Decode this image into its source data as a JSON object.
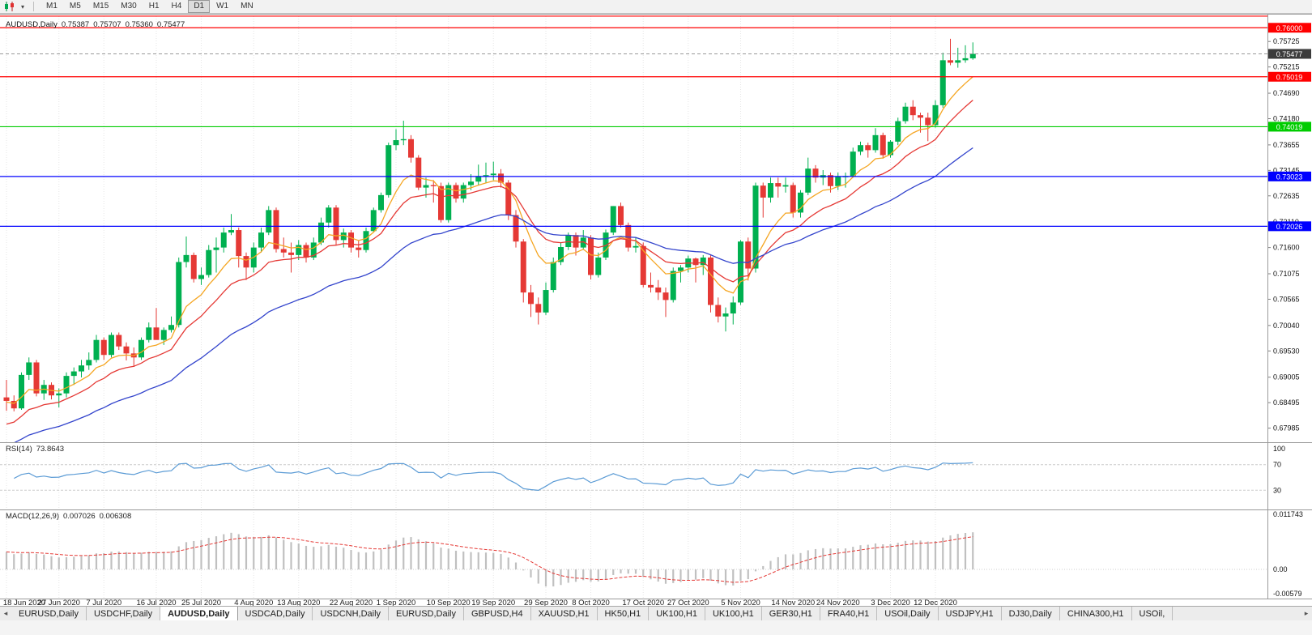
{
  "toolbar": {
    "timeframes": [
      {
        "label": "M1",
        "active": false
      },
      {
        "label": "M5",
        "active": false
      },
      {
        "label": "M15",
        "active": false
      },
      {
        "label": "M30",
        "active": false
      },
      {
        "label": "H1",
        "active": false
      },
      {
        "label": "H4",
        "active": false
      },
      {
        "label": "D1",
        "active": true
      },
      {
        "label": "W1",
        "active": false
      },
      {
        "label": "MN",
        "active": false
      }
    ]
  },
  "chart": {
    "symbol_line": {
      "symbol": "AUDUSD,Daily",
      "open": "0.75387",
      "high": "0.75707",
      "low": "0.75360",
      "close": "0.75477"
    },
    "price_axis_ticks": [
      "0.75725",
      "0.75215",
      "0.74690",
      "0.74180",
      "0.73655",
      "0.73145",
      "0.72635",
      "0.72110",
      "0.71600",
      "0.71075",
      "0.70565",
      "0.70040",
      "0.69530",
      "0.69005",
      "0.68495",
      "0.67985"
    ],
    "current_price": {
      "value": "0.75477",
      "badge_color": "#3c3c3c"
    },
    "levels": [
      {
        "price": 0.76232,
        "color": "#ff0000",
        "label": null
      },
      {
        "price": 0.76,
        "color": "#ff0000",
        "label": "0.76000"
      },
      {
        "price": 0.75019,
        "color": "#ff0000",
        "label": "0.75019"
      },
      {
        "price": 0.74019,
        "color": "#00cc00",
        "label": "0.74019"
      },
      {
        "price": 0.73023,
        "color": "#0000ff",
        "label": "0.73023"
      },
      {
        "price": 0.72026,
        "color": "#0000ff",
        "label": "0.72026"
      }
    ],
    "date_ticks": [
      {
        "index": 0,
        "label": "18 Jun 2020"
      },
      {
        "index": 7,
        "label": "27 Jun 2020"
      },
      {
        "index": 13,
        "label": "7 Jul 2020"
      },
      {
        "index": 20,
        "label": "16 Jul 2020"
      },
      {
        "index": 26,
        "label": "25 Jul 2020"
      },
      {
        "index": 33,
        "label": "4 Aug 2020"
      },
      {
        "index": 39,
        "label": "13 Aug 2020"
      },
      {
        "index": 46,
        "label": "22 Aug 2020"
      },
      {
        "index": 52,
        "label": "1 Sep 2020"
      },
      {
        "index": 59,
        "label": "10 Sep 2020"
      },
      {
        "index": 65,
        "label": "19 Sep 2020"
      },
      {
        "index": 72,
        "label": "29 Sep 2020"
      },
      {
        "index": 78,
        "label": "8 Oct 2020"
      },
      {
        "index": 85,
        "label": "17 Oct 2020"
      },
      {
        "index": 91,
        "label": "27 Oct 2020"
      },
      {
        "index": 98,
        "label": "5 Nov 2020"
      },
      {
        "index": 105,
        "label": "14 Nov 2020"
      },
      {
        "index": 111,
        "label": "24 Nov 2020"
      },
      {
        "index": 118,
        "label": "3 Dec 2020"
      },
      {
        "index": 124,
        "label": "12 Dec 2020"
      }
    ]
  },
  "chart_data": {
    "type": "candlestick",
    "symbol": "AUDUSD",
    "timeframe": "Daily",
    "up_color": "#00b050",
    "down_color": "#e53935",
    "candles": [
      [
        0.686,
        0.6895,
        0.6833,
        0.6853
      ],
      [
        0.6853,
        0.6864,
        0.6832,
        0.6838
      ],
      [
        0.6838,
        0.691,
        0.6835,
        0.6905
      ],
      [
        0.6905,
        0.694,
        0.6895,
        0.693
      ],
      [
        0.693,
        0.6935,
        0.6862,
        0.6868
      ],
      [
        0.6868,
        0.6895,
        0.6855,
        0.6885
      ],
      [
        0.6885,
        0.689,
        0.6856,
        0.6864
      ],
      [
        0.6864,
        0.6878,
        0.684,
        0.6868
      ],
      [
        0.6868,
        0.691,
        0.686,
        0.6903
      ],
      [
        0.6903,
        0.692,
        0.6885,
        0.6912
      ],
      [
        0.6912,
        0.6935,
        0.69,
        0.6924
      ],
      [
        0.6924,
        0.695,
        0.6915,
        0.6935
      ],
      [
        0.6935,
        0.6985,
        0.693,
        0.6975
      ],
      [
        0.6975,
        0.698,
        0.6935,
        0.6945
      ],
      [
        0.6945,
        0.699,
        0.694,
        0.6985
      ],
      [
        0.6985,
        0.699,
        0.6955,
        0.6962
      ],
      [
        0.6962,
        0.697,
        0.6934,
        0.6948
      ],
      [
        0.6948,
        0.696,
        0.6921,
        0.694
      ],
      [
        0.694,
        0.698,
        0.6935,
        0.6975
      ],
      [
        0.6975,
        0.701,
        0.697,
        0.7
      ],
      [
        0.7,
        0.7039,
        0.699,
        0.6975
      ],
      [
        0.6975,
        0.7,
        0.6965,
        0.6995
      ],
      [
        0.6995,
        0.7022,
        0.699,
        0.7005
      ],
      [
        0.7005,
        0.714,
        0.7,
        0.7131
      ],
      [
        0.7131,
        0.7182,
        0.712,
        0.7145
      ],
      [
        0.7145,
        0.715,
        0.709,
        0.7097
      ],
      [
        0.7097,
        0.712,
        0.7085,
        0.7105
      ],
      [
        0.7105,
        0.7165,
        0.71,
        0.7155
      ],
      [
        0.7155,
        0.718,
        0.711,
        0.716
      ],
      [
        0.716,
        0.72,
        0.715,
        0.719
      ],
      [
        0.719,
        0.7227,
        0.7185,
        0.7195
      ],
      [
        0.7195,
        0.72,
        0.712,
        0.7143
      ],
      [
        0.7143,
        0.715,
        0.7095,
        0.712
      ],
      [
        0.712,
        0.717,
        0.711,
        0.716
      ],
      [
        0.716,
        0.72,
        0.715,
        0.719
      ],
      [
        0.719,
        0.7243,
        0.7185,
        0.7235
      ],
      [
        0.7235,
        0.724,
        0.715,
        0.7157
      ],
      [
        0.7157,
        0.718,
        0.714,
        0.715
      ],
      [
        0.715,
        0.717,
        0.711,
        0.7145
      ],
      [
        0.7145,
        0.7175,
        0.7135,
        0.7165
      ],
      [
        0.7165,
        0.717,
        0.713,
        0.714
      ],
      [
        0.714,
        0.718,
        0.7135,
        0.717
      ],
      [
        0.717,
        0.722,
        0.7165,
        0.721
      ],
      [
        0.721,
        0.7245,
        0.72,
        0.724
      ],
      [
        0.724,
        0.7245,
        0.7165,
        0.7175
      ],
      [
        0.7175,
        0.7198,
        0.716,
        0.719
      ],
      [
        0.719,
        0.7195,
        0.715,
        0.716
      ],
      [
        0.716,
        0.7175,
        0.714,
        0.7155
      ],
      [
        0.7155,
        0.72,
        0.715,
        0.7193
      ],
      [
        0.7193,
        0.724,
        0.719,
        0.7235
      ],
      [
        0.7235,
        0.727,
        0.723,
        0.7265
      ],
      [
        0.7265,
        0.737,
        0.726,
        0.7365
      ],
      [
        0.7365,
        0.7397,
        0.7355,
        0.7375
      ],
      [
        0.7375,
        0.7414,
        0.7365,
        0.7377
      ],
      [
        0.7377,
        0.7385,
        0.733,
        0.734
      ],
      [
        0.734,
        0.7345,
        0.7275,
        0.728
      ],
      [
        0.728,
        0.73,
        0.726,
        0.7285
      ],
      [
        0.7285,
        0.7295,
        0.725,
        0.7283
      ],
      [
        0.7283,
        0.729,
        0.721,
        0.7215
      ],
      [
        0.7215,
        0.729,
        0.721,
        0.7285
      ],
      [
        0.7285,
        0.729,
        0.725,
        0.7258
      ],
      [
        0.7258,
        0.729,
        0.725,
        0.7285
      ],
      [
        0.7285,
        0.7307,
        0.7275,
        0.7292
      ],
      [
        0.7292,
        0.7326,
        0.7285,
        0.7303
      ],
      [
        0.7303,
        0.733,
        0.729,
        0.7305
      ],
      [
        0.7305,
        0.7332,
        0.7295,
        0.7308
      ],
      [
        0.7308,
        0.7317,
        0.728,
        0.729
      ],
      [
        0.729,
        0.7295,
        0.7215,
        0.7225
      ],
      [
        0.7225,
        0.7235,
        0.716,
        0.7172
      ],
      [
        0.7172,
        0.7177,
        0.705,
        0.707
      ],
      [
        0.707,
        0.7085,
        0.7021,
        0.7047
      ],
      [
        0.7047,
        0.706,
        0.7006,
        0.703
      ],
      [
        0.703,
        0.709,
        0.7025,
        0.7075
      ],
      [
        0.7075,
        0.714,
        0.707,
        0.7131
      ],
      [
        0.7131,
        0.717,
        0.7125,
        0.7161
      ],
      [
        0.7161,
        0.719,
        0.7155,
        0.7185
      ],
      [
        0.7185,
        0.719,
        0.7144,
        0.716
      ],
      [
        0.716,
        0.7195,
        0.7155,
        0.718
      ],
      [
        0.718,
        0.7185,
        0.7096,
        0.7105
      ],
      [
        0.7105,
        0.715,
        0.71,
        0.714
      ],
      [
        0.714,
        0.7196,
        0.7135,
        0.719
      ],
      [
        0.719,
        0.7243,
        0.7185,
        0.7243
      ],
      [
        0.7243,
        0.725,
        0.72,
        0.7205
      ],
      [
        0.7205,
        0.721,
        0.7152,
        0.716
      ],
      [
        0.716,
        0.718,
        0.715,
        0.7163
      ],
      [
        0.7163,
        0.717,
        0.708,
        0.7085
      ],
      [
        0.7085,
        0.711,
        0.707,
        0.708
      ],
      [
        0.708,
        0.7095,
        0.7055,
        0.707
      ],
      [
        0.707,
        0.708,
        0.7021,
        0.7055
      ],
      [
        0.7055,
        0.712,
        0.705,
        0.7113
      ],
      [
        0.7113,
        0.7125,
        0.709,
        0.712
      ],
      [
        0.712,
        0.7144,
        0.711,
        0.7138
      ],
      [
        0.7138,
        0.714,
        0.709,
        0.7125
      ],
      [
        0.7125,
        0.7145,
        0.7105,
        0.714
      ],
      [
        0.714,
        0.7145,
        0.703,
        0.7045
      ],
      [
        0.7045,
        0.706,
        0.701,
        0.7022
      ],
      [
        0.7022,
        0.704,
        0.6992,
        0.7028
      ],
      [
        0.7028,
        0.7062,
        0.7006,
        0.705
      ],
      [
        0.705,
        0.7175,
        0.7045,
        0.7172
      ],
      [
        0.7172,
        0.718,
        0.7094,
        0.7118
      ],
      [
        0.7118,
        0.729,
        0.711,
        0.7284
      ],
      [
        0.7284,
        0.729,
        0.722,
        0.726
      ],
      [
        0.726,
        0.73,
        0.725,
        0.7289
      ],
      [
        0.7289,
        0.73,
        0.726,
        0.7282
      ],
      [
        0.7282,
        0.73,
        0.727,
        0.7285
      ],
      [
        0.7285,
        0.729,
        0.722,
        0.723
      ],
      [
        0.723,
        0.7275,
        0.722,
        0.727
      ],
      [
        0.727,
        0.734,
        0.7265,
        0.7318
      ],
      [
        0.7318,
        0.7325,
        0.729,
        0.73
      ],
      [
        0.73,
        0.7315,
        0.7285,
        0.7305
      ],
      [
        0.7305,
        0.731,
        0.727,
        0.7283
      ],
      [
        0.7283,
        0.731,
        0.7275,
        0.7302
      ],
      [
        0.7302,
        0.731,
        0.728,
        0.7303
      ],
      [
        0.7303,
        0.736,
        0.73,
        0.7352
      ],
      [
        0.7352,
        0.7372,
        0.7345,
        0.7365
      ],
      [
        0.7365,
        0.737,
        0.734,
        0.7355
      ],
      [
        0.7355,
        0.7399,
        0.735,
        0.7385
      ],
      [
        0.7385,
        0.739,
        0.7338,
        0.7345
      ],
      [
        0.7345,
        0.7375,
        0.734,
        0.7372
      ],
      [
        0.7372,
        0.742,
        0.7365,
        0.7413
      ],
      [
        0.7413,
        0.745,
        0.7408,
        0.7442
      ],
      [
        0.7442,
        0.7455,
        0.7415,
        0.7425
      ],
      [
        0.7425,
        0.743,
        0.739,
        0.742
      ],
      [
        0.742,
        0.743,
        0.7373,
        0.7405
      ],
      [
        0.7405,
        0.7455,
        0.74,
        0.7445
      ],
      [
        0.7445,
        0.755,
        0.744,
        0.7535
      ],
      [
        0.7535,
        0.7578,
        0.7525,
        0.753
      ],
      [
        0.753,
        0.756,
        0.752,
        0.7535
      ],
      [
        0.7535,
        0.7565,
        0.753,
        0.7539
      ],
      [
        0.75387,
        0.75707,
        0.7536,
        0.75477
      ]
    ],
    "moving_averages": [
      {
        "period": 8,
        "color": "#f5a623",
        "seed": 0.685
      },
      {
        "period": 15,
        "color": "#e53935",
        "seed": 0.68
      },
      {
        "period": 36,
        "color": "#3344cc",
        "seed": 0.676
      }
    ],
    "rsi": {
      "label": "RSI(14)",
      "value": "73.8643",
      "period": 14,
      "overbought": 70,
      "oversold": 30,
      "axis": [
        "100",
        "70",
        "30"
      ],
      "color": "#5b9bd5"
    },
    "macd": {
      "label": "MACD(12,26,9)",
      "value_main": "0.007026",
      "value_signal": "0.006308",
      "fast": 12,
      "slow": 26,
      "signal": 9,
      "fast_seed": 0.6865,
      "slow_seed": 0.6825,
      "axis_top": "0.011743",
      "axis_zero": "0.00",
      "axis_bottom": "-0.00579",
      "histogram_color": "#c0c0c0",
      "signal_color": "#e53935"
    }
  },
  "tabs": {
    "items": [
      {
        "label": "EURUSD,Daily",
        "active": false
      },
      {
        "label": "USDCHF,Daily",
        "active": false
      },
      {
        "label": "AUDUSD,Daily",
        "active": true
      },
      {
        "label": "USDCAD,Daily",
        "active": false
      },
      {
        "label": "USDCNH,Daily",
        "active": false
      },
      {
        "label": "EURUSD,Daily",
        "active": false
      },
      {
        "label": "GBPUSD,H4",
        "active": false
      },
      {
        "label": "XAUUSD,H1",
        "active": false
      },
      {
        "label": "HK50,H1",
        "active": false
      },
      {
        "label": "UK100,H1",
        "active": false
      },
      {
        "label": "UK100,H1",
        "active": false
      },
      {
        "label": "GER30,H1",
        "active": false
      },
      {
        "label": "FRA40,H1",
        "active": false
      },
      {
        "label": "USOil,Daily",
        "active": false
      },
      {
        "label": "USDJPY,H1",
        "active": false
      },
      {
        "label": "DJ30,Daily",
        "active": false
      },
      {
        "label": "CHINA300,H1",
        "active": false
      },
      {
        "label": "USOil,",
        "active": false
      }
    ]
  }
}
